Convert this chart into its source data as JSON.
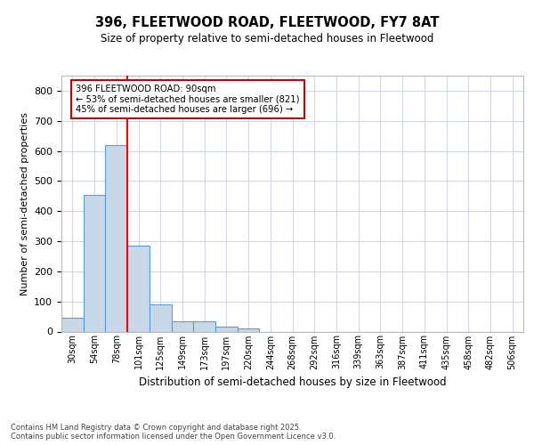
{
  "title1": "396, FLEETWOOD ROAD, FLEETWOOD, FY7 8AT",
  "title2": "Size of property relative to semi-detached houses in Fleetwood",
  "xlabel": "Distribution of semi-detached houses by size in Fleetwood",
  "ylabel": "Number of semi-detached properties",
  "footnote": "Contains HM Land Registry data © Crown copyright and database right 2025.\nContains public sector information licensed under the Open Government Licence v3.0.",
  "categories": [
    "30sqm",
    "54sqm",
    "78sqm",
    "101sqm",
    "125sqm",
    "149sqm",
    "173sqm",
    "197sqm",
    "220sqm",
    "244sqm",
    "268sqm",
    "292sqm",
    "316sqm",
    "339sqm",
    "363sqm",
    "387sqm",
    "411sqm",
    "435sqm",
    "458sqm",
    "482sqm",
    "506sqm"
  ],
  "values": [
    45,
    455,
    620,
    285,
    90,
    35,
    35,
    15,
    10,
    0,
    0,
    0,
    0,
    0,
    0,
    0,
    0,
    0,
    0,
    0,
    0
  ],
  "bar_color": "#c8d8e8",
  "bar_edge_color": "#5b9bd5",
  "red_line_x": 2.5,
  "annotation_text_line1": "396 FLEETWOOD ROAD: 90sqm",
  "annotation_text_line2": "← 53% of semi-detached houses are smaller (821)",
  "annotation_text_line3": "45% of semi-detached houses are larger (696) →",
  "annotation_box_edge": "#cc0000",
  "ylim": [
    0,
    850
  ],
  "yticks": [
    0,
    100,
    200,
    300,
    400,
    500,
    600,
    700,
    800
  ],
  "background_color": "#ffffff",
  "grid_color": "#d0d8e8"
}
